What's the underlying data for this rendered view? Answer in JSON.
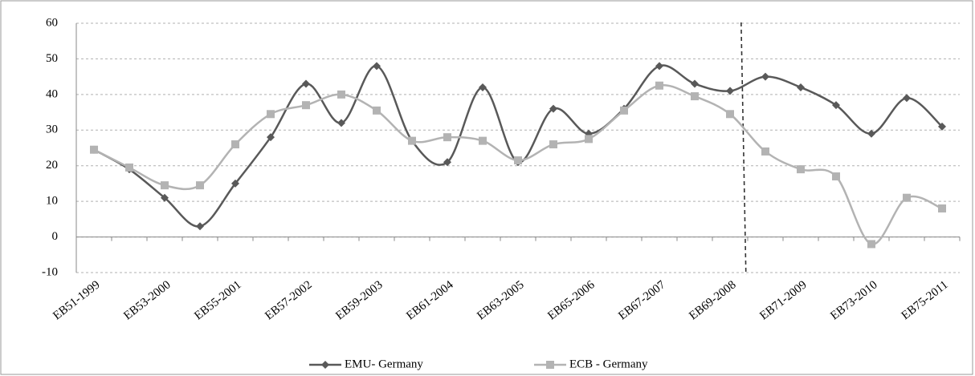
{
  "chart_data": {
    "type": "line",
    "categories": [
      "EB51-1999",
      null,
      "EB53-2000",
      null,
      "EB55-2001",
      null,
      "EB57-2002",
      null,
      "EB59-2003",
      null,
      "EB61-2004",
      null,
      "EB63-2005",
      null,
      "EB65-2006",
      null,
      "EB67-2007",
      null,
      "EB69-2008",
      null,
      "EB71-2009",
      null,
      "EB73-2010",
      null,
      "EB75-2011"
    ],
    "series": [
      {
        "name": "EMU- Germany",
        "color": "#595959",
        "marker": "diamond",
        "values": [
          24.5,
          19,
          11,
          3,
          15,
          28,
          43,
          32,
          48,
          27,
          21,
          42,
          21,
          36,
          29,
          36,
          48,
          43,
          41,
          45,
          42,
          37,
          29,
          39,
          31
        ]
      },
      {
        "name": "ECB - Germany",
        "color": "#b3b3b3",
        "marker": "square",
        "values": [
          24.5,
          19.5,
          14.5,
          14.5,
          26,
          34.5,
          37,
          40,
          35.5,
          27,
          28,
          27,
          21.5,
          26,
          27.5,
          35.5,
          42.5,
          39.5,
          34.5,
          24,
          19,
          17,
          -2,
          11,
          8
        ]
      }
    ],
    "ylim": [
      -10,
      60
    ],
    "yticks": [
      -10,
      0,
      10,
      20,
      30,
      40,
      50,
      60
    ],
    "grid": true,
    "legend": "bottom"
  }
}
